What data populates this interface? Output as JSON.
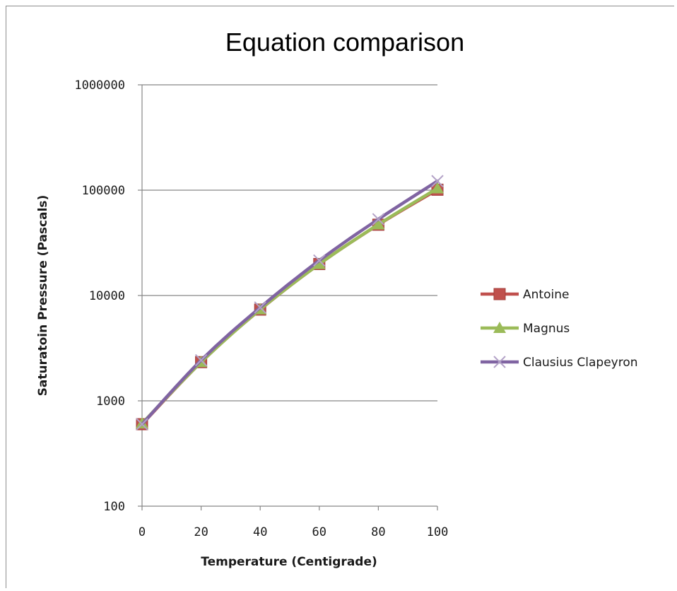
{
  "chart_data": {
    "type": "line",
    "title": "Equation comparison",
    "xlabel": "Temperature (Centigrade)",
    "ylabel": "Saturatoin Pressure (Pascals)",
    "x": [
      0,
      20,
      40,
      60,
      80,
      100
    ],
    "xlim": [
      0,
      100
    ],
    "x_ticks": [
      "0",
      "20",
      "40",
      "60",
      "80",
      "100"
    ],
    "y_scale": "log",
    "ylim": [
      100,
      1000000
    ],
    "y_ticks": [
      "100",
      "1000",
      "10000",
      "100000",
      "1000000"
    ],
    "y_tick_values": [
      100,
      1000,
      10000,
      100000,
      1000000
    ],
    "grid": "horizontal major",
    "legend_position": "right",
    "series": [
      {
        "name": "Antoine",
        "color": "#c0504d",
        "marker": "square",
        "values": [
          600,
          2330,
          7350,
          19900,
          47000,
          101000
        ]
      },
      {
        "name": "Magnus",
        "color": "#9bbb59",
        "marker": "triangle",
        "values": [
          610,
          2330,
          7380,
          19900,
          47300,
          104000
        ]
      },
      {
        "name": "Clausius Clapeyron",
        "color": "#8064a2",
        "marker": "x",
        "values": [
          600,
          2430,
          7700,
          21500,
          53000,
          122000
        ]
      }
    ]
  }
}
